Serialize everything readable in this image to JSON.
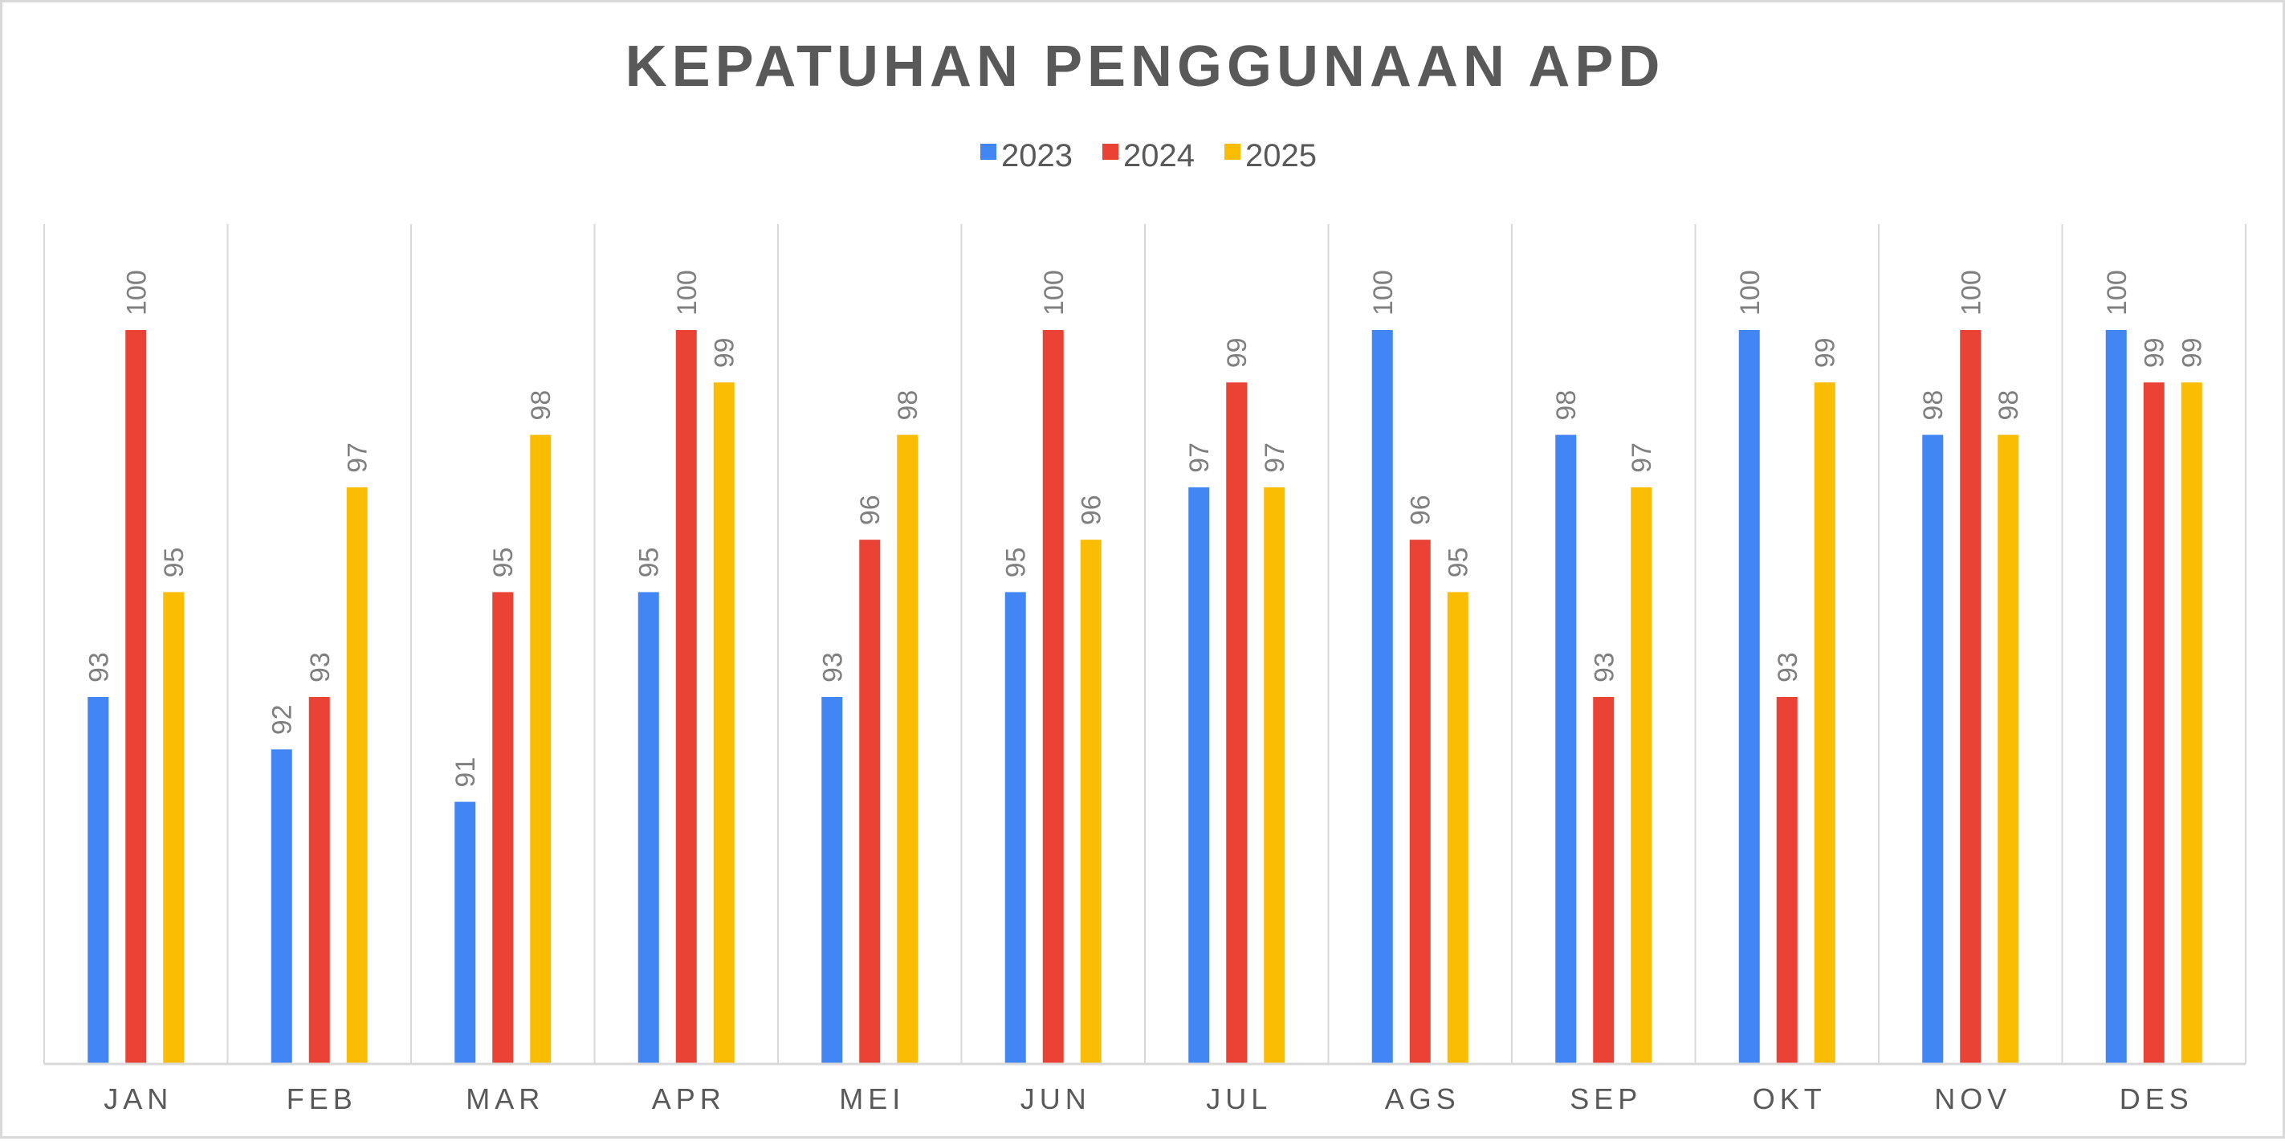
{
  "chart_data": {
    "type": "bar",
    "title": "KEPATUHAN PENGGUNAAN APD",
    "xlabel": "",
    "ylabel": "",
    "categories": [
      "JAN",
      "FEB",
      "MAR",
      "APR",
      "MEI",
      "JUN",
      "JUL",
      "AGS",
      "SEP",
      "OKT",
      "NOV",
      "DES"
    ],
    "series": [
      {
        "name": "2023",
        "color": "#4285F4",
        "values": [
          93,
          92,
          91,
          95,
          93,
          95,
          97,
          100,
          98,
          100,
          98,
          100
        ]
      },
      {
        "name": "2024",
        "color": "#EA4335",
        "values": [
          100,
          93,
          95,
          100,
          96,
          100,
          99,
          96,
          93,
          93,
          100,
          99
        ]
      },
      {
        "name": "2025",
        "color": "#FBBC04",
        "values": [
          95,
          97,
          98,
          99,
          98,
          96,
          97,
          95,
          97,
          99,
          98,
          99
        ]
      }
    ],
    "ylim": [
      86,
      100
    ],
    "data_labels": true,
    "data_label_orientation": "vertical",
    "legend_position": "top",
    "gridlines": "vertical category separators"
  }
}
